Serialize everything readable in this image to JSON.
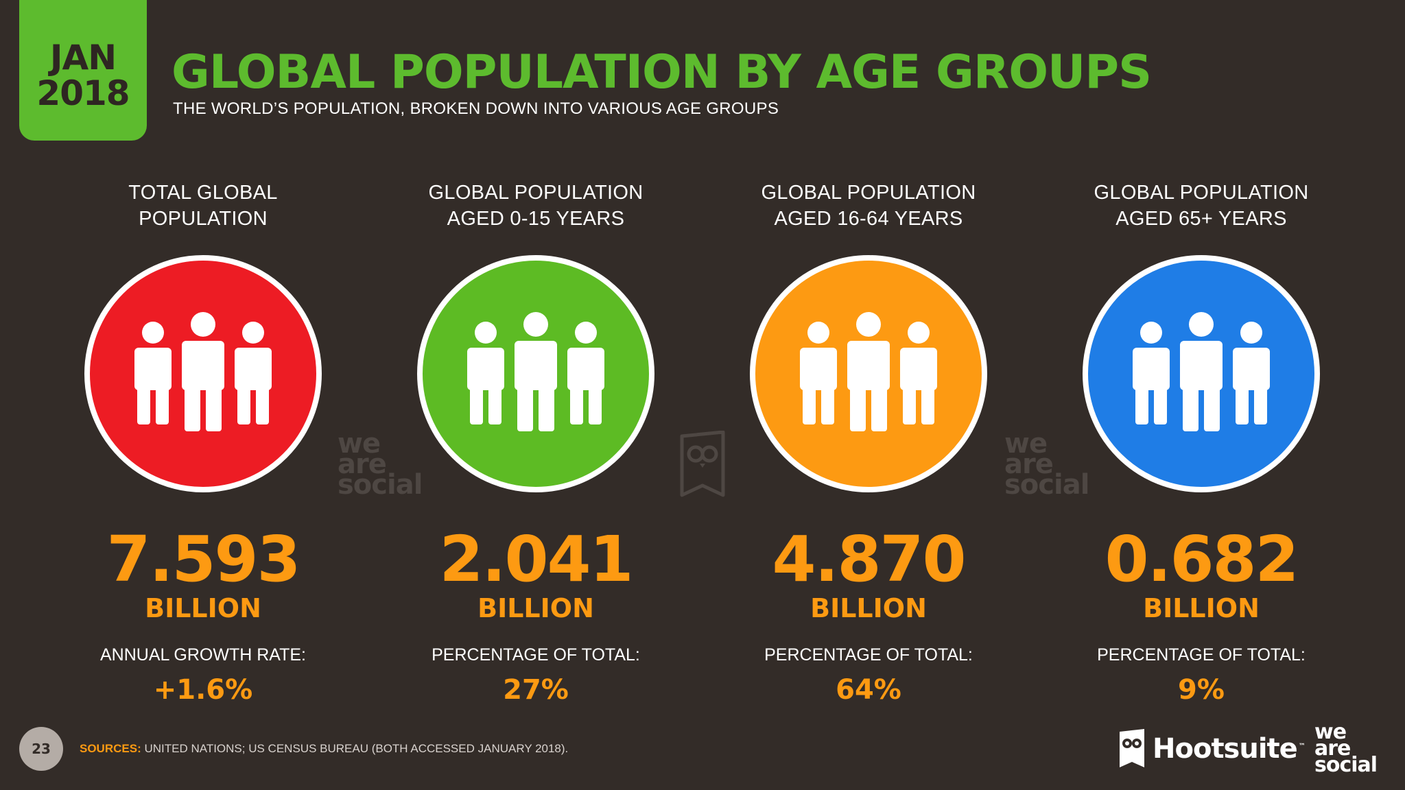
{
  "header": {
    "date_month": "JAN",
    "date_year": "2018",
    "title": "GLOBAL POPULATION BY AGE GROUPS",
    "subtitle": "THE WORLD’S POPULATION, BROKEN DOWN INTO VARIOUS AGE GROUPS"
  },
  "columns": [
    {
      "heading_line1": "TOTAL GLOBAL",
      "heading_line2": "POPULATION",
      "circle_color": "#ed1c24",
      "icon": "people-group-icon",
      "value": "7.593",
      "unit": "BILLION",
      "metric_label": "ANNUAL GROWTH RATE:",
      "metric_value": "+1.6%"
    },
    {
      "heading_line1": "GLOBAL POPULATION",
      "heading_line2": "AGED 0-15 YEARS",
      "circle_color": "#5dbb24",
      "icon": "people-group-icon",
      "value": "2.041",
      "unit": "BILLION",
      "metric_label": "PERCENTAGE OF TOTAL:",
      "metric_value": "27%"
    },
    {
      "heading_line1": "GLOBAL POPULATION",
      "heading_line2": "AGED 16-64 YEARS",
      "circle_color": "#fd9a12",
      "icon": "people-group-icon",
      "value": "4.870",
      "unit": "BILLION",
      "metric_label": "PERCENTAGE OF TOTAL:",
      "metric_value": "64%"
    },
    {
      "heading_line1": "GLOBAL POPULATION",
      "heading_line2": "AGED 65+ YEARS",
      "circle_color": "#1f7de6",
      "icon": "people-group-icon",
      "value": "0.682",
      "unit": "BILLION",
      "metric_label": "PERCENTAGE OF TOTAL:",
      "metric_value": "9%"
    }
  ],
  "watermarks": {
    "line1": "we",
    "line2": "are",
    "line3": "social"
  },
  "footer": {
    "page_number": "23",
    "sources_label": "SOURCES:",
    "sources_text": "UNITED NATIONS; US CENSUS BUREAU (BOTH ACCESSED JANUARY 2018).",
    "hootsuite_name": "Hootsuite",
    "hootsuite_tm": "™",
    "was_line1": "we",
    "was_line2": "are",
    "was_line3": "social"
  },
  "colors": {
    "background": "#332c28",
    "accent_green": "#5dbb2e",
    "accent_orange": "#fd9a12"
  }
}
